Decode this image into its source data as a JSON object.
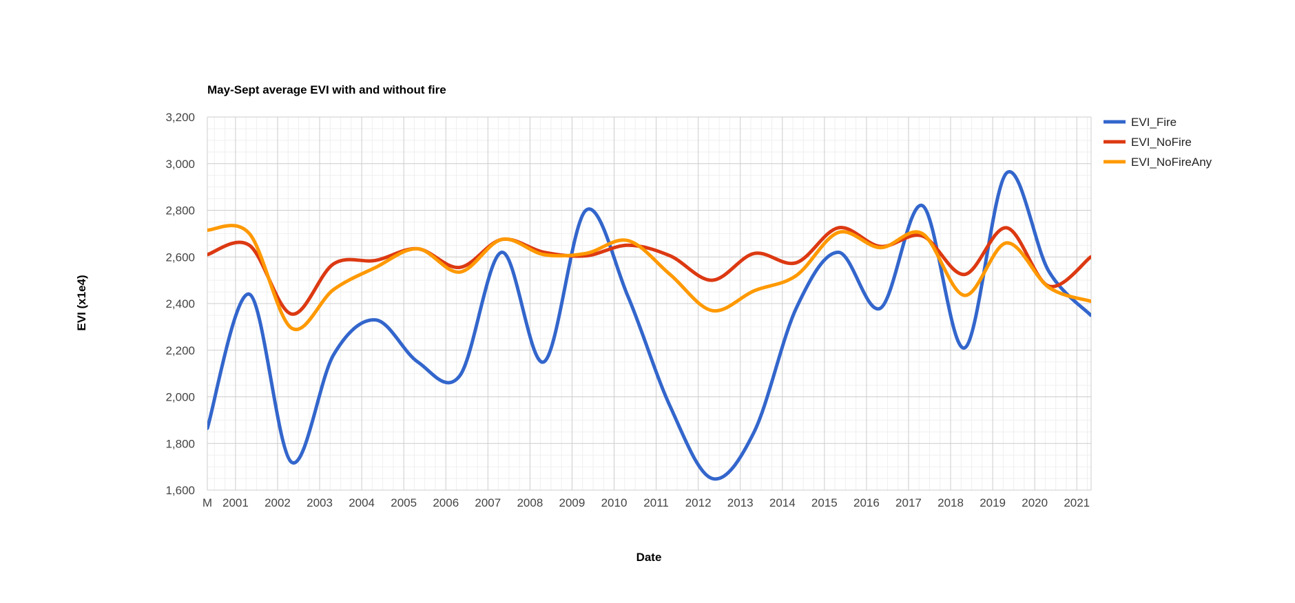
{
  "chart_data": {
    "type": "line",
    "title": "May-Sept average EVI with and without fire",
    "xlabel": "Date",
    "ylabel": "EVI (x1e4)",
    "ylim": [
      1600,
      3200
    ],
    "y_ticks": [
      "1,600",
      "1,800",
      "2,000",
      "2,200",
      "2,400",
      "2,600",
      "2,800",
      "3,000",
      "3,200"
    ],
    "x_tick_labels": [
      "M",
      "2001",
      "2002",
      "2003",
      "2004",
      "2005",
      "2006",
      "2007",
      "2008",
      "2009",
      "2010",
      "2011",
      "2012",
      "2013",
      "2014",
      "2015",
      "2016",
      "2017",
      "2018",
      "2019",
      "2020",
      "2021"
    ],
    "x_tick_years": [
      2000.33,
      2001,
      2002,
      2003,
      2004,
      2005,
      2006,
      2007,
      2008,
      2009,
      2010,
      2011,
      2012,
      2013,
      2014,
      2015,
      2016,
      2017,
      2018,
      2019,
      2020,
      2021
    ],
    "xlim": [
      2000.33,
      2021.34
    ],
    "x": [
      2000.33,
      2001.33,
      2002.33,
      2003.33,
      2004.33,
      2005.33,
      2006.33,
      2007.33,
      2008.33,
      2009.33,
      2010.33,
      2011.33,
      2012.33,
      2013.33,
      2014.33,
      2015.33,
      2016.33,
      2017.33,
      2018.33,
      2019.33,
      2020.33,
      2021.33
    ],
    "grid": true,
    "legend_position": "right",
    "series": [
      {
        "name": "EVI_Fire",
        "color": "#3366cc",
        "values": [
          1865,
          2440,
          1720,
          2180,
          2330,
          2150,
          2090,
          2620,
          2150,
          2800,
          2430,
          1960,
          1650,
          1850,
          2380,
          2620,
          2380,
          2820,
          2210,
          2960,
          2540,
          2350
        ]
      },
      {
        "name": "EVI_NoFire",
        "color": "#dc3912",
        "values": [
          2610,
          2650,
          2355,
          2570,
          2585,
          2635,
          2555,
          2675,
          2620,
          2605,
          2650,
          2605,
          2500,
          2615,
          2575,
          2725,
          2645,
          2690,
          2525,
          2725,
          2475,
          2600
        ]
      },
      {
        "name": "EVI_NoFireAny",
        "color": "#ff9900",
        "values": [
          2715,
          2700,
          2295,
          2460,
          2555,
          2635,
          2535,
          2675,
          2610,
          2615,
          2670,
          2525,
          2370,
          2455,
          2520,
          2705,
          2640,
          2700,
          2435,
          2660,
          2470,
          2410
        ]
      }
    ]
  }
}
